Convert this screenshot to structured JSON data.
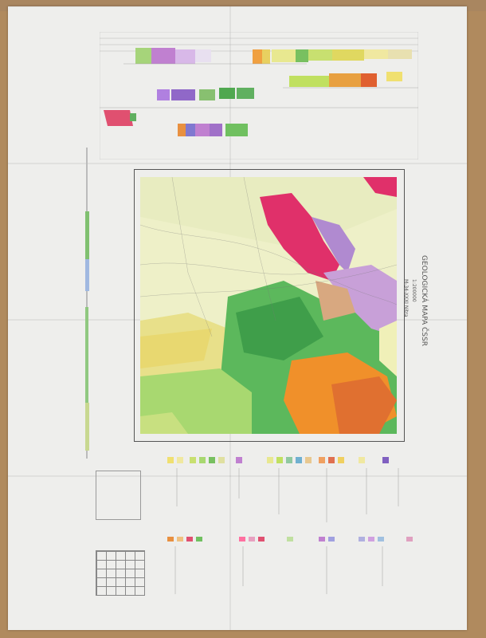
{
  "map_sheet": {
    "title": "GEOLOGICKÁ MAPA ČSSR",
    "scale": "1:200000",
    "sheet_id": "M-34-XXXI Nitra"
  },
  "colors": {
    "paper": "#eeeeec",
    "quaternary": "#f0f0b8",
    "neogene": "#e8e48a",
    "volcanic_green": "#6ac06a",
    "andesite": "#3f9e4a",
    "granite": "#e0306a",
    "mesozoic": "#b08ad0",
    "orange": "#f0902a"
  }
}
